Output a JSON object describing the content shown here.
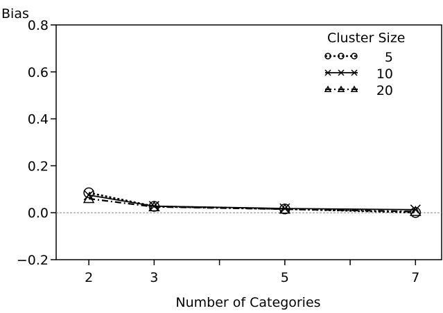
{
  "chart_data": {
    "type": "line",
    "title": "",
    "ylabel": "Bias",
    "xlabel": "Number of Categories",
    "x": [
      2,
      3,
      5,
      7
    ],
    "xlim": [
      1.5,
      7.4
    ],
    "xticks": [
      2,
      3,
      4,
      5,
      6,
      7
    ],
    "xtick_labels": [
      "2",
      "3",
      "",
      "5",
      "",
      "7"
    ],
    "ylim": [
      -0.2,
      0.8
    ],
    "yticks": [
      -0.2,
      0.0,
      0.2,
      0.4,
      0.6,
      0.8
    ],
    "ytick_labels": [
      "−0.2",
      "0.0",
      "0.2",
      "0.4",
      "0.6",
      "0.8"
    ],
    "reference_line": 0.0,
    "grid": false,
    "legend": {
      "title": "Cluster Size",
      "position": "top-right"
    },
    "series": [
      {
        "name": "5",
        "marker": "circle",
        "dash": "short-dash",
        "values": [
          0.085,
          0.027,
          0.016,
          0.001
        ]
      },
      {
        "name": "10",
        "marker": "x",
        "dash": "solid",
        "values": [
          0.075,
          0.028,
          0.018,
          0.013
        ]
      },
      {
        "name": "20",
        "marker": "triangle",
        "dash": "dash-dot",
        "values": [
          0.06,
          0.025,
          0.015,
          0.005
        ]
      }
    ]
  }
}
